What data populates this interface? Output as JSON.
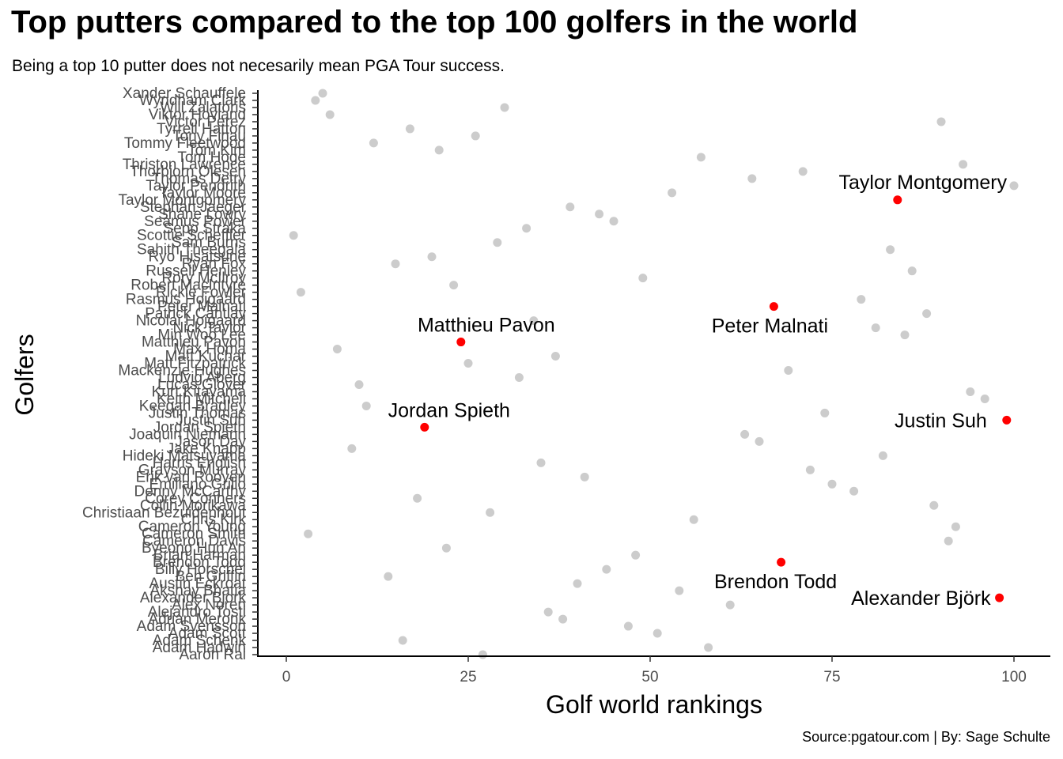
{
  "chart_data": {
    "type": "scatter",
    "title": "Top putters compared to the top 100 golfers in the world",
    "subtitle": "Being a top 10 putter does not necesarily mean PGA Tour success.",
    "caption": "Source:pgatour.com | By: Sage Schulte",
    "xlabel": "Golf world rankings",
    "ylabel": "Golfers",
    "xlim": [
      -4,
      105
    ],
    "x_ticks": [
      0,
      25,
      50,
      75,
      100
    ],
    "grid": false,
    "colors": {
      "top_putter": "#ff0000",
      "other": "#cccccc",
      "axis": "#000000",
      "tick_label": "#4d4d4d"
    },
    "golfers": [
      "Xander Schauffele",
      "Wyndham Clark",
      "Will Zalatoris",
      "Viktor Hovland",
      "Victor Perez",
      "Tyrrell Hatton",
      "Tony Finau",
      "Tommy Fleetwood",
      "Tom Kim",
      "Tom Hoge",
      "Thriston Lawrence",
      "Thorbjorn Olesen",
      "Thomas Detry",
      "Taylor Pendrith",
      "Taylor Moore",
      "Taylor Montgomery",
      "Stephan Jaeger",
      "Shane Lowry",
      "Seamus Power",
      "Sepp Straka",
      "Scottie Scheffler",
      "Sam Burns",
      "Sahith Theegala",
      "Ryo Hisatsune",
      "Ryan Fox",
      "Russell Henley",
      "Rory McIlroy",
      "Robert MacIntyre",
      "Rickie Fowler",
      "Rasmus Hojgaard",
      "Peter Malnati",
      "Patrick Cantlay",
      "Nicolai Hojgaard",
      "Nick Taylor",
      "Min Woo Lee",
      "Matthieu Pavon",
      "Max Homa",
      "Matt Kuchar",
      "Matt Fitzpatrick",
      "Mackenzie Hughes",
      "Ludvig Aberg",
      "Lucas Glover",
      "Kurt Kitayama",
      "Keith Mitchell",
      "Keegan Bradley",
      "Justin Thomas",
      "Justin Suh",
      "Jordan Spieth",
      "Joaquin Niemann",
      "Jason Day",
      "Jake Knapp",
      "Hideki Matsuyama",
      "Harris English",
      "Grayson Murray",
      "Erik van Rooyen",
      "Emiliano Grillo",
      "Denny McCarthy",
      "Corey Conners",
      "Collin Morikawa",
      "Christiaan Bezuidenhout",
      "Chris Kirk",
      "Cameron Young",
      "Cameron Smith",
      "Cameron Davis",
      "Byeong Hun An",
      "Brian Harman",
      "Brendon Todd",
      "Billy Horschel",
      "Ben Griffin",
      "Austin Eckroat",
      "Akshay Bhatia",
      "Alexander Bjork",
      "Alex Noren",
      "Alejandro Tosti",
      "Adrian Meronk",
      "Adam Svensson",
      "Adam Scott",
      "Adam Schenk",
      "Adam Hadwin",
      "Aaron Rai"
    ],
    "points": [
      {
        "golfer": "Xander Schauffele",
        "rank": 5,
        "top_putter": false
      },
      {
        "golfer": "Wyndham Clark",
        "rank": 4,
        "top_putter": false
      },
      {
        "golfer": "Will Zalatoris",
        "rank": 30,
        "top_putter": false
      },
      {
        "golfer": "Viktor Hovland",
        "rank": 6,
        "top_putter": false
      },
      {
        "golfer": "Victor Perez",
        "rank": 90,
        "top_putter": false
      },
      {
        "golfer": "Tyrrell Hatton",
        "rank": 17,
        "top_putter": false
      },
      {
        "golfer": "Tony Finau",
        "rank": 26,
        "top_putter": false
      },
      {
        "golfer": "Tommy Fleetwood",
        "rank": 12,
        "top_putter": false
      },
      {
        "golfer": "Tom Kim",
        "rank": 21,
        "top_putter": false
      },
      {
        "golfer": "Tom Hoge",
        "rank": 57,
        "top_putter": false
      },
      {
        "golfer": "Thriston Lawrence",
        "rank": 93,
        "top_putter": false
      },
      {
        "golfer": "Thorbjorn Olesen",
        "rank": 71,
        "top_putter": false
      },
      {
        "golfer": "Thomas Detry",
        "rank": 64,
        "top_putter": false
      },
      {
        "golfer": "Taylor Pendrith",
        "rank": 100,
        "top_putter": false
      },
      {
        "golfer": "Taylor Moore",
        "rank": 53,
        "top_putter": false
      },
      {
        "golfer": "Taylor Montgomery",
        "rank": 84,
        "top_putter": true
      },
      {
        "golfer": "Stephan Jaeger",
        "rank": 39,
        "top_putter": false
      },
      {
        "golfer": "Shane Lowry",
        "rank": 43,
        "top_putter": false
      },
      {
        "golfer": "Seamus Power",
        "rank": 45,
        "top_putter": false
      },
      {
        "golfer": "Sepp Straka",
        "rank": 33,
        "top_putter": false
      },
      {
        "golfer": "Scottie Scheffler",
        "rank": 1,
        "top_putter": false
      },
      {
        "golfer": "Sam Burns",
        "rank": 29,
        "top_putter": false
      },
      {
        "golfer": "Sahith Theegala",
        "rank": 83,
        "top_putter": false
      },
      {
        "golfer": "Ryo Hisatsune",
        "rank": 20,
        "top_putter": false
      },
      {
        "golfer": "Ryan Fox",
        "rank": 15,
        "top_putter": false
      },
      {
        "golfer": "Russell Henley",
        "rank": 86,
        "top_putter": false
      },
      {
        "golfer": "Rory McIlroy",
        "rank": 49,
        "top_putter": false
      },
      {
        "golfer": "Robert MacIntyre",
        "rank": 23,
        "top_putter": false
      },
      {
        "golfer": "Rickie Fowler",
        "rank": 2,
        "top_putter": false
      },
      {
        "golfer": "Rasmus Hojgaard",
        "rank": 79,
        "top_putter": false
      },
      {
        "golfer": "Peter Malnati",
        "rank": 67,
        "top_putter": true
      },
      {
        "golfer": "Patrick Cantlay",
        "rank": 88,
        "top_putter": false
      },
      {
        "golfer": "Nicolai Hojgaard",
        "rank": 34,
        "top_putter": false
      },
      {
        "golfer": "Nick Taylor",
        "rank": 81,
        "top_putter": false
      },
      {
        "golfer": "Min Woo Lee",
        "rank": 85,
        "top_putter": false
      },
      {
        "golfer": "Matthieu Pavon",
        "rank": 24,
        "top_putter": true
      },
      {
        "golfer": "Max Homa",
        "rank": 7,
        "top_putter": false
      },
      {
        "golfer": "Matt Kuchar",
        "rank": 37,
        "top_putter": false
      },
      {
        "golfer": "Matt Fitzpatrick",
        "rank": 25,
        "top_putter": false
      },
      {
        "golfer": "Mackenzie Hughes",
        "rank": 69,
        "top_putter": false
      },
      {
        "golfer": "Ludvig Aberg",
        "rank": 32,
        "top_putter": false
      },
      {
        "golfer": "Lucas Glover",
        "rank": 10,
        "top_putter": false
      },
      {
        "golfer": "Kurt Kitayama",
        "rank": 94,
        "top_putter": false
      },
      {
        "golfer": "Keith Mitchell",
        "rank": 96,
        "top_putter": false
      },
      {
        "golfer": "Keegan Bradley",
        "rank": 11,
        "top_putter": false
      },
      {
        "golfer": "Justin Thomas",
        "rank": 74,
        "top_putter": false
      },
      {
        "golfer": "Justin Suh",
        "rank": 99,
        "top_putter": true
      },
      {
        "golfer": "Jordan Spieth",
        "rank": 19,
        "top_putter": true
      },
      {
        "golfer": "Joaquin Niemann",
        "rank": 63,
        "top_putter": false
      },
      {
        "golfer": "Jason Day",
        "rank": 65,
        "top_putter": false
      },
      {
        "golfer": "Jake Knapp",
        "rank": 9,
        "top_putter": false
      },
      {
        "golfer": "Hideki Matsuyama",
        "rank": 82,
        "top_putter": false
      },
      {
        "golfer": "Harris English",
        "rank": 35,
        "top_putter": false
      },
      {
        "golfer": "Grayson Murray",
        "rank": 72,
        "top_putter": false
      },
      {
        "golfer": "Erik van Rooyen",
        "rank": 41,
        "top_putter": false
      },
      {
        "golfer": "Emiliano Grillo",
        "rank": 75,
        "top_putter": false
      },
      {
        "golfer": "Denny McCarthy",
        "rank": 78,
        "top_putter": false
      },
      {
        "golfer": "Corey Conners",
        "rank": 18,
        "top_putter": false
      },
      {
        "golfer": "Collin Morikawa",
        "rank": 89,
        "top_putter": false
      },
      {
        "golfer": "Christiaan Bezuidenhout",
        "rank": 28,
        "top_putter": false
      },
      {
        "golfer": "Chris Kirk",
        "rank": 56,
        "top_putter": false
      },
      {
        "golfer": "Cameron Young",
        "rank": 92,
        "top_putter": false
      },
      {
        "golfer": "Cameron Smith",
        "rank": 3,
        "top_putter": false
      },
      {
        "golfer": "Cameron Davis",
        "rank": 91,
        "top_putter": false
      },
      {
        "golfer": "Byeong Hun An",
        "rank": 22,
        "top_putter": false
      },
      {
        "golfer": "Brian Harman",
        "rank": 48,
        "top_putter": false
      },
      {
        "golfer": "Brendon Todd",
        "rank": 68,
        "top_putter": true
      },
      {
        "golfer": "Billy Horschel",
        "rank": 44,
        "top_putter": false
      },
      {
        "golfer": "Ben Griffin",
        "rank": 14,
        "top_putter": false
      },
      {
        "golfer": "Austin Eckroat",
        "rank": 40,
        "top_putter": false
      },
      {
        "golfer": "Akshay Bhatia",
        "rank": 54,
        "top_putter": false
      },
      {
        "golfer": "Alexander Bjork",
        "rank": 98,
        "top_putter": true
      },
      {
        "golfer": "Alex Noren",
        "rank": 61,
        "top_putter": false
      },
      {
        "golfer": "Alejandro Tosti",
        "rank": 36,
        "top_putter": false
      },
      {
        "golfer": "Adrian Meronk",
        "rank": 38,
        "top_putter": false
      },
      {
        "golfer": "Adam Svensson",
        "rank": 47,
        "top_putter": false
      },
      {
        "golfer": "Adam Scott",
        "rank": 51,
        "top_putter": false
      },
      {
        "golfer": "Adam Schenk",
        "rank": 16,
        "top_putter": false
      },
      {
        "golfer": "Adam Hadwin",
        "rank": 58,
        "top_putter": false
      },
      {
        "golfer": "Aaron Rai",
        "rank": 27,
        "top_putter": false
      }
    ],
    "annotations": [
      {
        "text": "Taylor Montgomery",
        "golfer": "Taylor Montgomery",
        "rank": 84
      },
      {
        "text": "Peter Malnati",
        "golfer": "Peter Malnati",
        "rank": 67
      },
      {
        "text": "Matthieu Pavon",
        "golfer": "Matthieu Pavon",
        "rank": 24
      },
      {
        "text": "Jordan Spieth",
        "golfer": "Jordan Spieth",
        "rank": 19
      },
      {
        "text": "Justin Suh",
        "golfer": "Justin Suh",
        "rank": 99
      },
      {
        "text": "Brendon Todd",
        "golfer": "Brendon Todd",
        "rank": 68
      },
      {
        "text": "Alexander Björk",
        "golfer": "Alexander Bjork",
        "rank": 98
      }
    ]
  }
}
